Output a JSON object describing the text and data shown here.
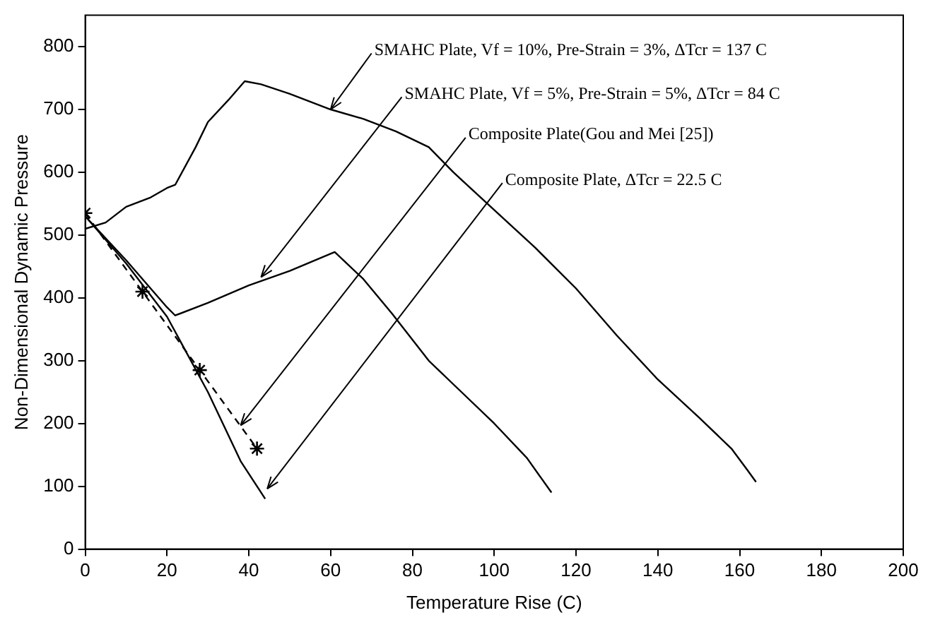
{
  "chart_data": {
    "type": "line",
    "xlabel": "Temperature Rise (C)",
    "ylabel": "Non-Dimensional Dynamic Pressure",
    "xlim": [
      0,
      200
    ],
    "xticks": [
      0,
      20,
      40,
      60,
      80,
      100,
      120,
      140,
      160,
      180,
      200
    ],
    "ylim": [
      0,
      850
    ],
    "yticks": [
      0,
      100,
      200,
      300,
      400,
      500,
      600,
      700,
      800
    ],
    "grid": false,
    "legend": false,
    "series": [
      {
        "color": "#000000",
        "marker": "none",
        "line_style": "solid",
        "x": [
          0,
          5,
          10,
          16,
          20,
          22,
          27,
          30,
          35,
          39,
          43,
          50,
          60,
          68,
          76,
          84,
          90,
          100,
          110,
          120,
          130,
          140,
          150,
          158,
          162,
          164
        ],
        "values": [
          510,
          520,
          545,
          560,
          575,
          580,
          640,
          680,
          715,
          745,
          740,
          725,
          700,
          685,
          665,
          640,
          600,
          540,
          480,
          415,
          340,
          270,
          210,
          160,
          125,
          107
        ]
      },
      {
        "color": "#000000",
        "marker": "none",
        "line_style": "solid",
        "x": [
          0,
          10,
          20,
          22,
          30,
          40,
          50,
          61,
          68,
          75,
          84,
          92,
          100,
          108,
          114
        ],
        "values": [
          530,
          460,
          385,
          372,
          392,
          420,
          443,
          473,
          430,
          375,
          300,
          250,
          200,
          145,
          90
        ]
      },
      {
        "color": "#000000",
        "marker": "cross",
        "line_style": "dashed",
        "x": [
          0,
          14,
          28,
          42
        ],
        "values": [
          535,
          410,
          285,
          160
        ]
      },
      {
        "color": "#000000",
        "marker": "none",
        "line_style": "solid",
        "x": [
          0,
          10,
          20,
          30,
          38,
          44
        ],
        "values": [
          530,
          455,
          370,
          250,
          140,
          80
        ]
      }
    ],
    "annotations": [
      {
        "text": "SMAHC Plate, Vf = 10%, Pre-Strain = 3%, ΔTcr = 137 C",
        "x": 60,
        "y": 700
      },
      {
        "text": "SMAHC Plate, Vf = 5%, Pre-Strain = 5%, ΔTcr = 84 C",
        "x": 43,
        "y": 433
      },
      {
        "text": "Composite Plate(Gou and Mei [25])",
        "x": 38,
        "y": 197
      },
      {
        "text": "Composite Plate, ΔTcr = 22.5 C",
        "x": 44.5,
        "y": 96
      }
    ]
  }
}
